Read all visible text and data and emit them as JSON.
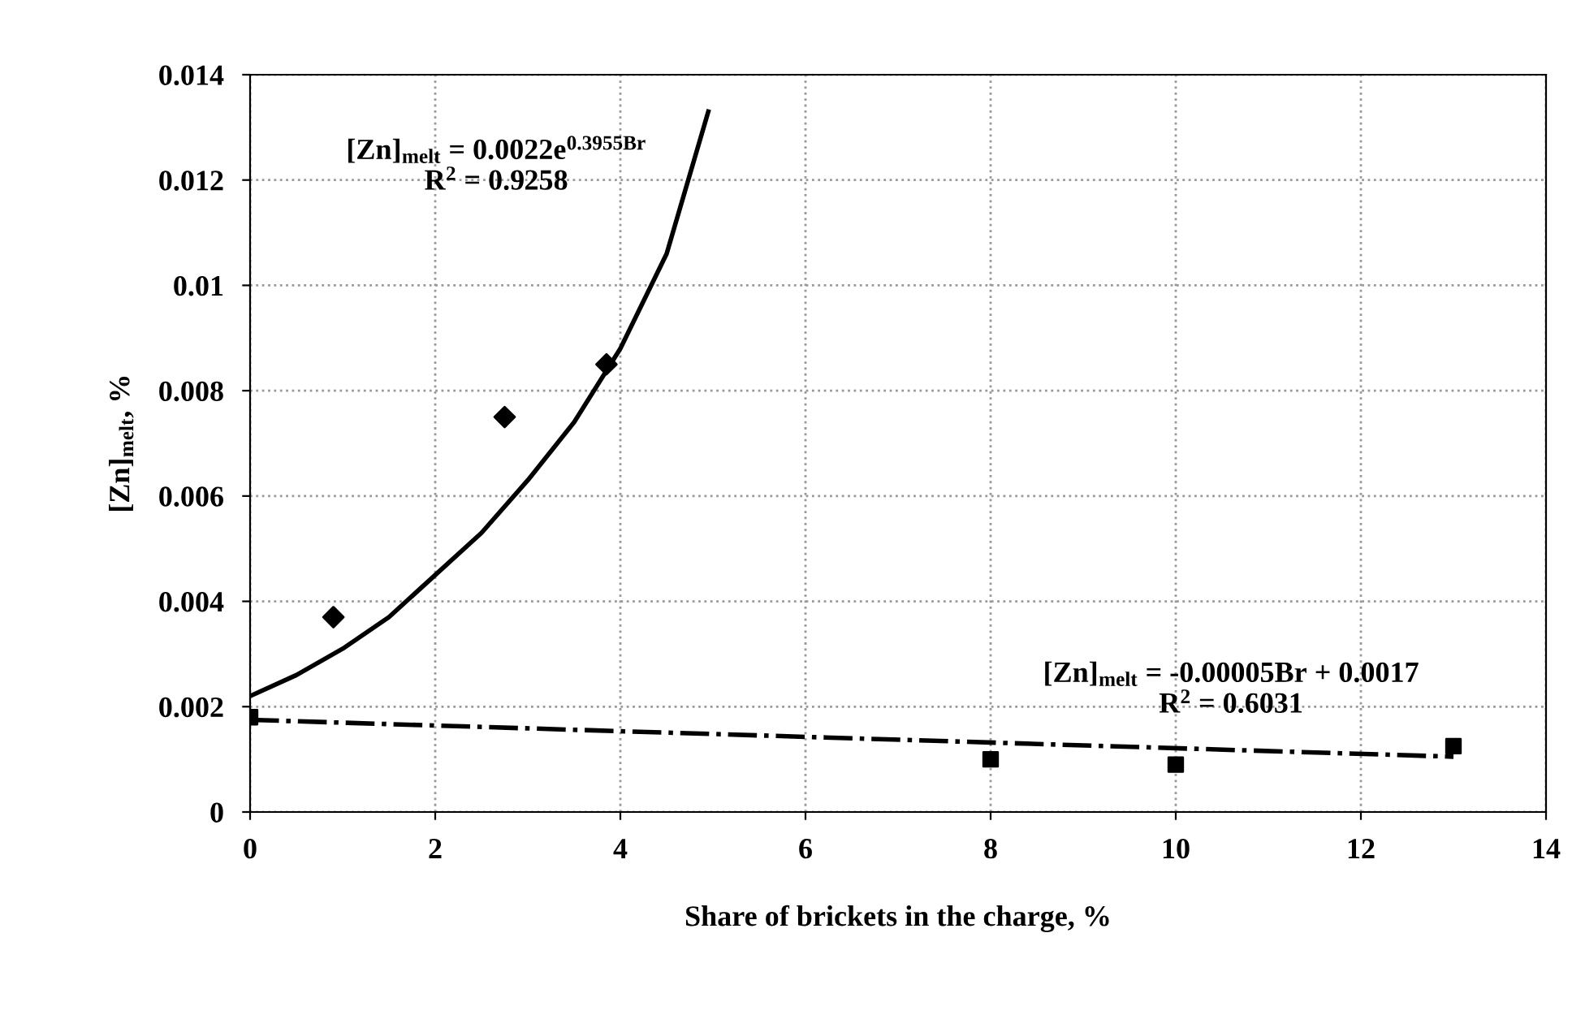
{
  "chart_data": {
    "type": "scatter",
    "xlabel": "Share of brickets in the charge, %",
    "ylabel": "[Zn]$_{melt}$, %",
    "xlim": [
      0,
      14
    ],
    "xticks": [
      0,
      2,
      4,
      6,
      8,
      10,
      12,
      14
    ],
    "ylim": [
      0,
      0.014
    ],
    "yticks": [
      0,
      0.002,
      0.004,
      0.006,
      0.008,
      {
        "value": 0.01,
        "label": "0.01"
      },
      0.012,
      0.014
    ],
    "grid": true,
    "legend": false,
    "series": [
      {
        "marker": "diamond",
        "color": "#000000",
        "x": [
          0.9,
          2.75,
          3.85
        ],
        "values": [
          0.0037,
          0.0075,
          0.0085
        ]
      },
      {
        "marker": "square",
        "color": "#000000",
        "x": [
          0,
          8,
          10,
          13
        ],
        "values": [
          0.0018,
          0.001,
          0.0009,
          0.00125
        ]
      },
      {
        "type": "line",
        "line_style": "solid",
        "color": "#000000",
        "x": [
          0,
          0.5,
          1,
          1.5,
          2,
          2.5,
          3,
          3.5,
          4,
          4.5,
          4.95
        ],
        "values": [
          0.0022,
          0.0026,
          0.0031,
          0.0037,
          0.0045,
          0.0053,
          0.0063,
          0.0074,
          0.0088,
          0.0106,
          0.0133
        ]
      },
      {
        "type": "line",
        "line_style": "dashdot",
        "color": "#000000",
        "x": [
          0,
          13
        ],
        "values": [
          0.00175,
          0.00105
        ]
      }
    ],
    "annotations": [
      "[Zn]$_{melt}$ = 0.0022e$^{0.3955Br}$\nR$^{2}$ = 0.9258",
      "[Zn]$_{melt}$ = -0.00005Br + 0.0017\nR$^{2}$ = 0.6031"
    ]
  }
}
